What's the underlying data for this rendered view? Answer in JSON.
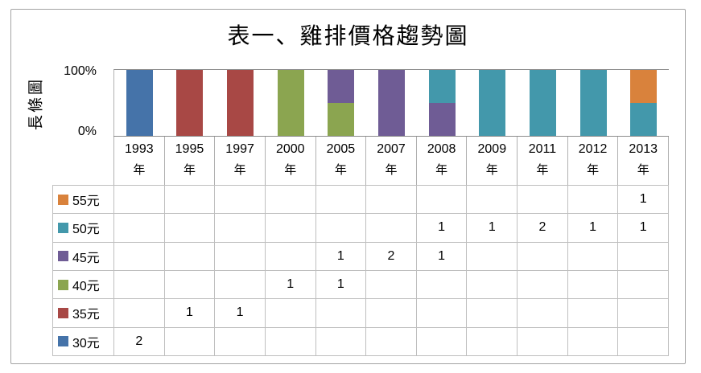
{
  "title": "表一、雞排價格趨勢圖",
  "y_axis": {
    "title": "長條圖",
    "ticks": [
      "100%",
      "0%"
    ]
  },
  "x_axis": {
    "unit_suffix": "年"
  },
  "chart_data": {
    "type": "bar",
    "subtype": "100-percent-stacked-column-with-data-table",
    "title": "表一、雞排價格趨勢圖",
    "ylabel": "長條圖",
    "ylim": [
      "0%",
      "100%"
    ],
    "gridlines": [
      "100%"
    ],
    "legend_position": "data-table-left-column",
    "categories": [
      "1993年",
      "1995年",
      "1997年",
      "2000年",
      "2005年",
      "2007年",
      "2008年",
      "2009年",
      "2011年",
      "2012年",
      "2013年"
    ],
    "category_years": [
      "1993",
      "1995",
      "1997",
      "2000",
      "2005",
      "2007",
      "2008",
      "2009",
      "2011",
      "2012",
      "2013"
    ],
    "stack_order_bottom_to_top": [
      "30元",
      "35元",
      "40元",
      "45元",
      "50元",
      "55元"
    ],
    "series": [
      {
        "name": "55元",
        "color": "#d9823c",
        "values": [
          null,
          null,
          null,
          null,
          null,
          null,
          null,
          null,
          null,
          null,
          1
        ]
      },
      {
        "name": "50元",
        "color": "#4398ab",
        "values": [
          null,
          null,
          null,
          null,
          null,
          null,
          1,
          1,
          2,
          1,
          1
        ]
      },
      {
        "name": "45元",
        "color": "#6f5c95",
        "values": [
          null,
          null,
          null,
          null,
          1,
          2,
          1,
          null,
          null,
          null,
          null
        ]
      },
      {
        "name": "40元",
        "color": "#8ba550",
        "values": [
          null,
          null,
          null,
          1,
          1,
          null,
          null,
          null,
          null,
          null,
          null
        ]
      },
      {
        "name": "35元",
        "color": "#a84845",
        "values": [
          null,
          1,
          1,
          null,
          null,
          null,
          null,
          null,
          null,
          null,
          null
        ]
      },
      {
        "name": "30元",
        "color": "#4573a9",
        "values": [
          2,
          null,
          null,
          null,
          null,
          null,
          null,
          null,
          null,
          null,
          null
        ]
      }
    ]
  }
}
